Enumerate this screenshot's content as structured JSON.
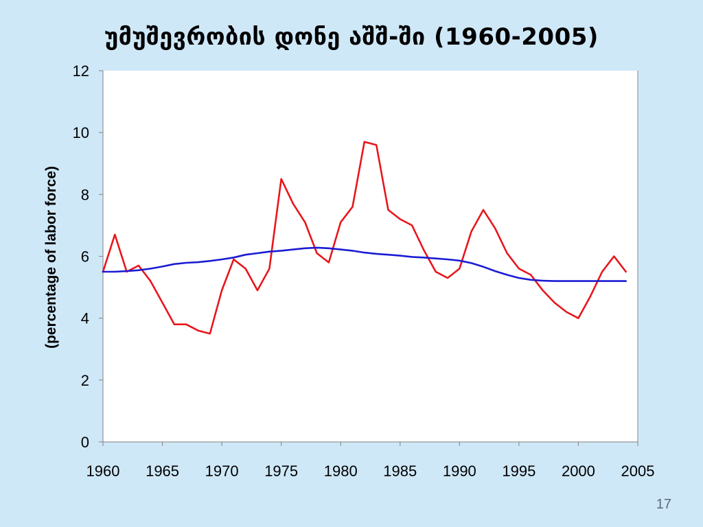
{
  "slide": {
    "title": "უმუშევრობის დონე აშშ-ში (1960-2005)",
    "page_number": "17"
  },
  "colors": {
    "background": "#cfe8f8",
    "plot_area": "#ffffff",
    "actual_series": "#e8161b",
    "trend_series": "#1b1bd4"
  },
  "chart_data": {
    "type": "line",
    "title": "უმუშევრობის დონე აშშ-ში (1960-2005)",
    "xlabel": "",
    "ylabel": "(percentage of labor force)",
    "xlim": [
      1960,
      2005
    ],
    "ylim": [
      0,
      12
    ],
    "x_ticks": [
      1960,
      1965,
      1970,
      1975,
      1980,
      1985,
      1990,
      1995,
      2000,
      2005
    ],
    "y_ticks": [
      0,
      2,
      4,
      6,
      8,
      10,
      12
    ],
    "grid": false,
    "legend": "none",
    "series": [
      {
        "color": "#e8161b",
        "x": [
          1960,
          1961,
          1962,
          1963,
          1964,
          1965,
          1966,
          1967,
          1968,
          1969,
          1970,
          1971,
          1972,
          1973,
          1974,
          1975,
          1976,
          1977,
          1978,
          1979,
          1980,
          1981,
          1982,
          1983,
          1984,
          1985,
          1986,
          1987,
          1988,
          1989,
          1990,
          1991,
          1992,
          1993,
          1994,
          1995,
          1996,
          1997,
          1998,
          1999,
          2000,
          2001,
          2002,
          2003,
          2004
        ],
        "values": [
          5.5,
          6.7,
          5.5,
          5.7,
          5.2,
          4.5,
          3.8,
          3.8,
          3.6,
          3.5,
          4.9,
          5.9,
          5.6,
          4.9,
          5.6,
          8.5,
          7.7,
          7.1,
          6.1,
          5.8,
          7.1,
          7.6,
          9.7,
          9.6,
          7.5,
          7.2,
          7.0,
          6.2,
          5.5,
          5.3,
          5.6,
          6.8,
          7.5,
          6.9,
          6.1,
          5.6,
          5.4,
          4.9,
          4.5,
          4.2,
          4.0,
          4.7,
          5.5,
          6.0,
          5.5
        ]
      },
      {
        "color": "#1b1bd4",
        "x": [
          1960,
          1961,
          1962,
          1963,
          1964,
          1965,
          1966,
          1967,
          1968,
          1969,
          1970,
          1971,
          1972,
          1973,
          1974,
          1975,
          1976,
          1977,
          1978,
          1979,
          1980,
          1981,
          1982,
          1983,
          1984,
          1985,
          1986,
          1987,
          1988,
          1989,
          1990,
          1991,
          1992,
          1993,
          1994,
          1995,
          1996,
          1997,
          1998,
          1999,
          2000,
          2001,
          2002,
          2003,
          2004
        ],
        "values": [
          5.5,
          5.5,
          5.52,
          5.55,
          5.6,
          5.67,
          5.75,
          5.79,
          5.81,
          5.85,
          5.9,
          5.96,
          6.05,
          6.1,
          6.15,
          6.18,
          6.22,
          6.26,
          6.28,
          6.26,
          6.22,
          6.18,
          6.12,
          6.08,
          6.05,
          6.02,
          5.98,
          5.96,
          5.93,
          5.9,
          5.86,
          5.78,
          5.66,
          5.52,
          5.4,
          5.3,
          5.24,
          5.21,
          5.2,
          5.2,
          5.2,
          5.2,
          5.2,
          5.2,
          5.2
        ]
      }
    ]
  }
}
